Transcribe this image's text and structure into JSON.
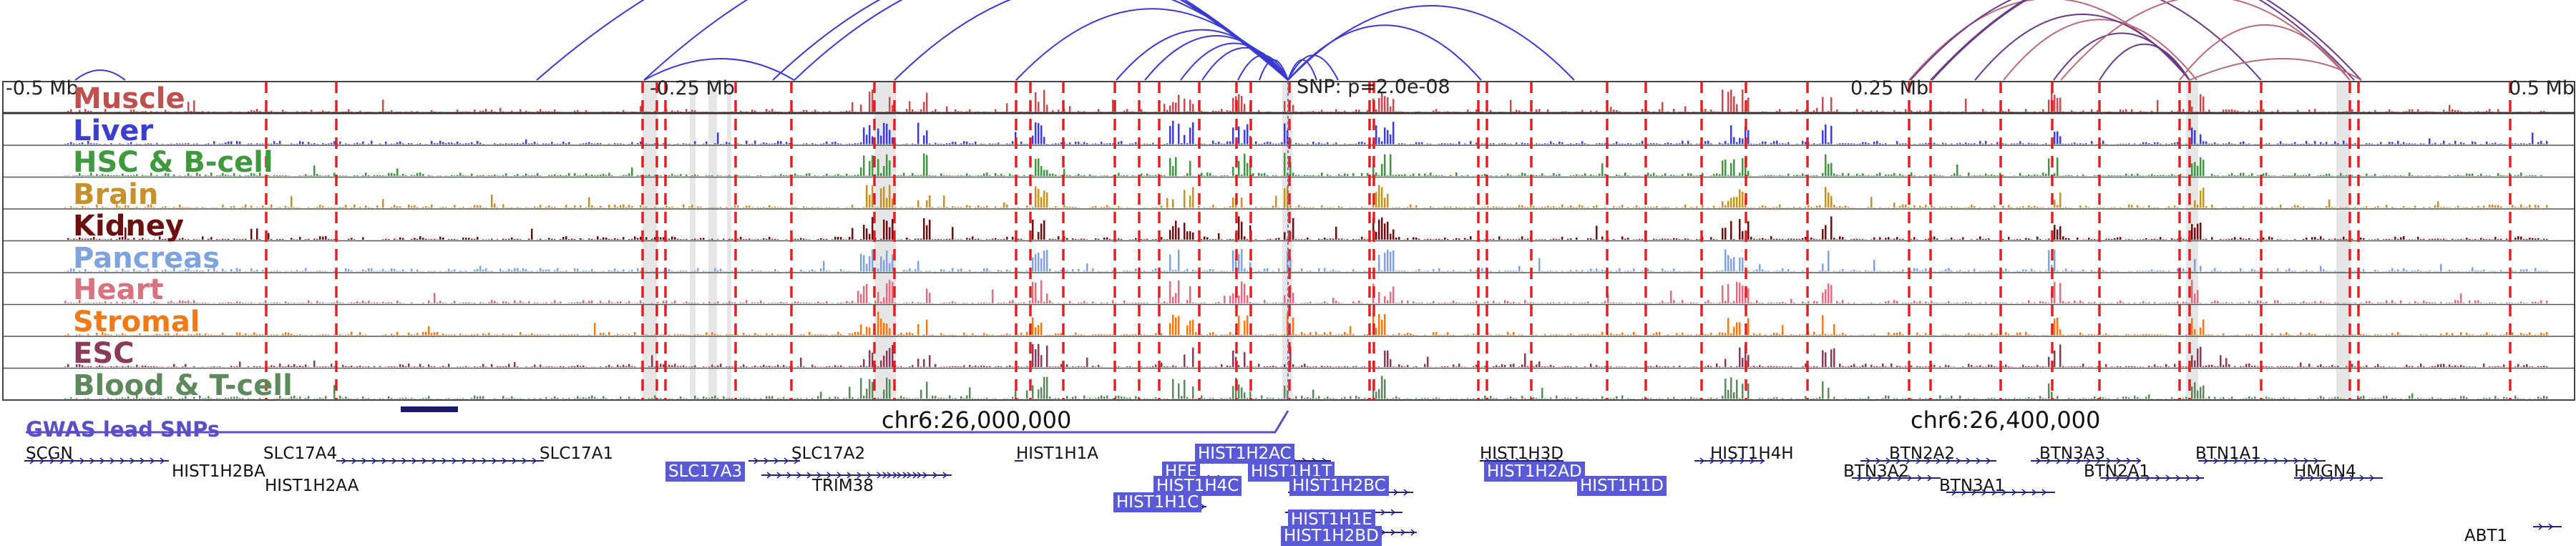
{
  "ruler": {
    "ticks": [
      "-0.5 Mb",
      "-0.25 Mb",
      "0.25 Mb",
      "0.5 Mb"
    ],
    "snp_label": "SNP: p=2.0e-08"
  },
  "tracks": [
    {
      "name": "Muscle",
      "color": "#c0504d"
    },
    {
      "name": "Liver",
      "color": "#3b3fcf"
    },
    {
      "name": "HSC & B-cell",
      "color": "#3f9a3f"
    },
    {
      "name": "Brain",
      "color": "#c8902a"
    },
    {
      "name": "Kidney",
      "color": "#6b0f0f"
    },
    {
      "name": "Pancreas",
      "color": "#7fa3dc"
    },
    {
      "name": "Heart",
      "color": "#d9727f"
    },
    {
      "name": "Stromal",
      "color": "#f07a17"
    },
    {
      "name": "ESC",
      "color": "#8c3a5a"
    },
    {
      "name": "Blood & T-cell",
      "color": "#5d8a5d"
    }
  ],
  "coordinates": [
    "chr6:26,000,000",
    "chr6:26,400,000"
  ],
  "gwas_label": "GWAS lead SNPs",
  "genes": [
    {
      "name": "SCGN",
      "hl": false
    },
    {
      "name": "HIST1H2BA",
      "hl": false
    },
    {
      "name": "SLC17A4",
      "hl": false
    },
    {
      "name": "HIST1H2AA",
      "hl": false
    },
    {
      "name": "SLC17A1",
      "hl": false
    },
    {
      "name": "SLC17A3",
      "hl": true
    },
    {
      "name": "SLC17A2",
      "hl": false
    },
    {
      "name": "TRIM38",
      "hl": false
    },
    {
      "name": "HIST1H1A",
      "hl": false
    },
    {
      "name": "HIST1H2AC",
      "hl": true
    },
    {
      "name": "HFE",
      "hl": true
    },
    {
      "name": "HIST1H1T",
      "hl": true
    },
    {
      "name": "HIST1H4C",
      "hl": true
    },
    {
      "name": "HIST1H2BC",
      "hl": true
    },
    {
      "name": "HIST1H1C",
      "hl": true
    },
    {
      "name": "HIST1H1E",
      "hl": true
    },
    {
      "name": "HIST1H2BD",
      "hl": true
    },
    {
      "name": "HIST1H3D",
      "hl": false
    },
    {
      "name": "HIST1H2AD",
      "hl": true
    },
    {
      "name": "HIST1H1D",
      "hl": true
    },
    {
      "name": "HIST1H4H",
      "hl": false
    },
    {
      "name": "BTN2A2",
      "hl": false
    },
    {
      "name": "BTN3A2",
      "hl": false
    },
    {
      "name": "BTN3A1",
      "hl": false
    },
    {
      "name": "BTN3A3",
      "hl": false
    },
    {
      "name": "BTN2A1",
      "hl": false
    },
    {
      "name": "BTN1A1",
      "hl": false
    },
    {
      "name": "HMGN4",
      "hl": false
    },
    {
      "name": "ABT1",
      "hl": false
    }
  ],
  "colors": {
    "arc_blue": "#3a3ad0",
    "arc_purple": "#6a3a8a",
    "arc_pink": "#b86a7a",
    "marker_red": "#e02020",
    "highlight_gray": "#d8d8d8",
    "gene_highlight": "#5a5ad6",
    "gwas": "#5b4fc6"
  }
}
